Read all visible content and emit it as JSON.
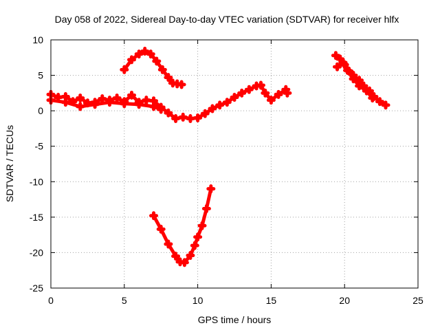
{
  "chart_data": {
    "type": "scatter",
    "title": "Day 058 of 2022, Sidereal Day-to-day VTEC variation (SDTVAR) for receiver hlfx",
    "xlabel": "GPS time / hours",
    "ylabel": "SDTVAR / TECUs",
    "xlim": [
      0,
      25
    ],
    "ylim": [
      -25,
      10
    ],
    "xticks": [
      0,
      5,
      10,
      15,
      20,
      25
    ],
    "yticks": [
      -25,
      -20,
      -15,
      -10,
      -5,
      0,
      5,
      10
    ],
    "grid": true,
    "marker": "plus",
    "color": "#ff0000",
    "series": [
      {
        "name": "arc-1",
        "points": [
          [
            0,
            2.3
          ],
          [
            0.5,
            1.9
          ],
          [
            1,
            2.0
          ],
          [
            1.5,
            1.3
          ],
          [
            2,
            1.8
          ],
          [
            2.5,
            1.1
          ],
          [
            3,
            1.2
          ],
          [
            3.5,
            1.7
          ],
          [
            4,
            1.5
          ],
          [
            4.5,
            1.8
          ],
          [
            5,
            1.3
          ],
          [
            5.5,
            2.2
          ],
          [
            6,
            1.2
          ],
          [
            6.5,
            1.5
          ],
          [
            7,
            1.4
          ],
          [
            7.5,
            0.5
          ],
          [
            8,
            -0.3
          ],
          [
            8.5,
            -1.1
          ],
          [
            9,
            -0.9
          ],
          [
            9.5,
            -1.1
          ],
          [
            10,
            -1.0
          ],
          [
            10.5,
            -0.4
          ],
          [
            11,
            0.3
          ],
          [
            11.5,
            0.8
          ],
          [
            12,
            1.2
          ],
          [
            12.5,
            1.9
          ],
          [
            13,
            2.5
          ],
          [
            13.5,
            3.0
          ],
          [
            14,
            3.5
          ],
          [
            14.3,
            3.6
          ],
          [
            14.6,
            2.5
          ],
          [
            15,
            1.5
          ],
          [
            15.5,
            2.3
          ],
          [
            16,
            3.0
          ],
          [
            16.1,
            2.5
          ]
        ]
      },
      {
        "name": "arc-1b",
        "points": [
          [
            0,
            1.5
          ],
          [
            1,
            1.2
          ],
          [
            2,
            0.6
          ],
          [
            3,
            0.9
          ],
          [
            4,
            1.2
          ],
          [
            5,
            1.0
          ],
          [
            6,
            0.9
          ],
          [
            7,
            0.6
          ],
          [
            7.5,
            0.2
          ]
        ]
      },
      {
        "name": "arc-2",
        "points": [
          [
            5,
            5.8
          ],
          [
            5.5,
            7.2
          ],
          [
            6,
            8.0
          ],
          [
            6.4,
            8.4
          ],
          [
            6.8,
            8.0
          ],
          [
            7.2,
            7.0
          ],
          [
            7.6,
            5.8
          ],
          [
            8,
            4.7
          ],
          [
            8.3,
            3.9
          ],
          [
            8.6,
            3.8
          ],
          [
            8.9,
            3.7
          ]
        ]
      },
      {
        "name": "arc-3",
        "points": [
          [
            7,
            -14.8
          ],
          [
            7.5,
            -16.7
          ],
          [
            8,
            -18.8
          ],
          [
            8.5,
            -20.5
          ],
          [
            8.8,
            -21.3
          ],
          [
            9.1,
            -21.4
          ],
          [
            9.5,
            -20.4
          ],
          [
            9.8,
            -19.0
          ],
          [
            10,
            -17.8
          ],
          [
            10.3,
            -16.2
          ],
          [
            10.6,
            -13.8
          ],
          [
            10.9,
            -11.0
          ]
        ]
      },
      {
        "name": "arc-4",
        "points": [
          [
            19.4,
            7.8
          ],
          [
            19.7,
            7.3
          ],
          [
            20,
            6.5
          ],
          [
            20.3,
            5.6
          ],
          [
            20.6,
            5.0
          ],
          [
            21,
            4.3
          ],
          [
            21.3,
            3.5
          ],
          [
            21.7,
            2.8
          ],
          [
            22,
            2.0
          ],
          [
            22.4,
            1.3
          ],
          [
            22.8,
            0.8
          ]
        ]
      },
      {
        "name": "arc-4b",
        "points": [
          [
            19.5,
            6.2
          ],
          [
            19.9,
            6.8
          ],
          [
            20.2,
            5.7
          ],
          [
            20.6,
            4.5
          ],
          [
            21,
            3.5
          ],
          [
            21.5,
            2.8
          ],
          [
            21.9,
            1.8
          ]
        ]
      }
    ]
  }
}
